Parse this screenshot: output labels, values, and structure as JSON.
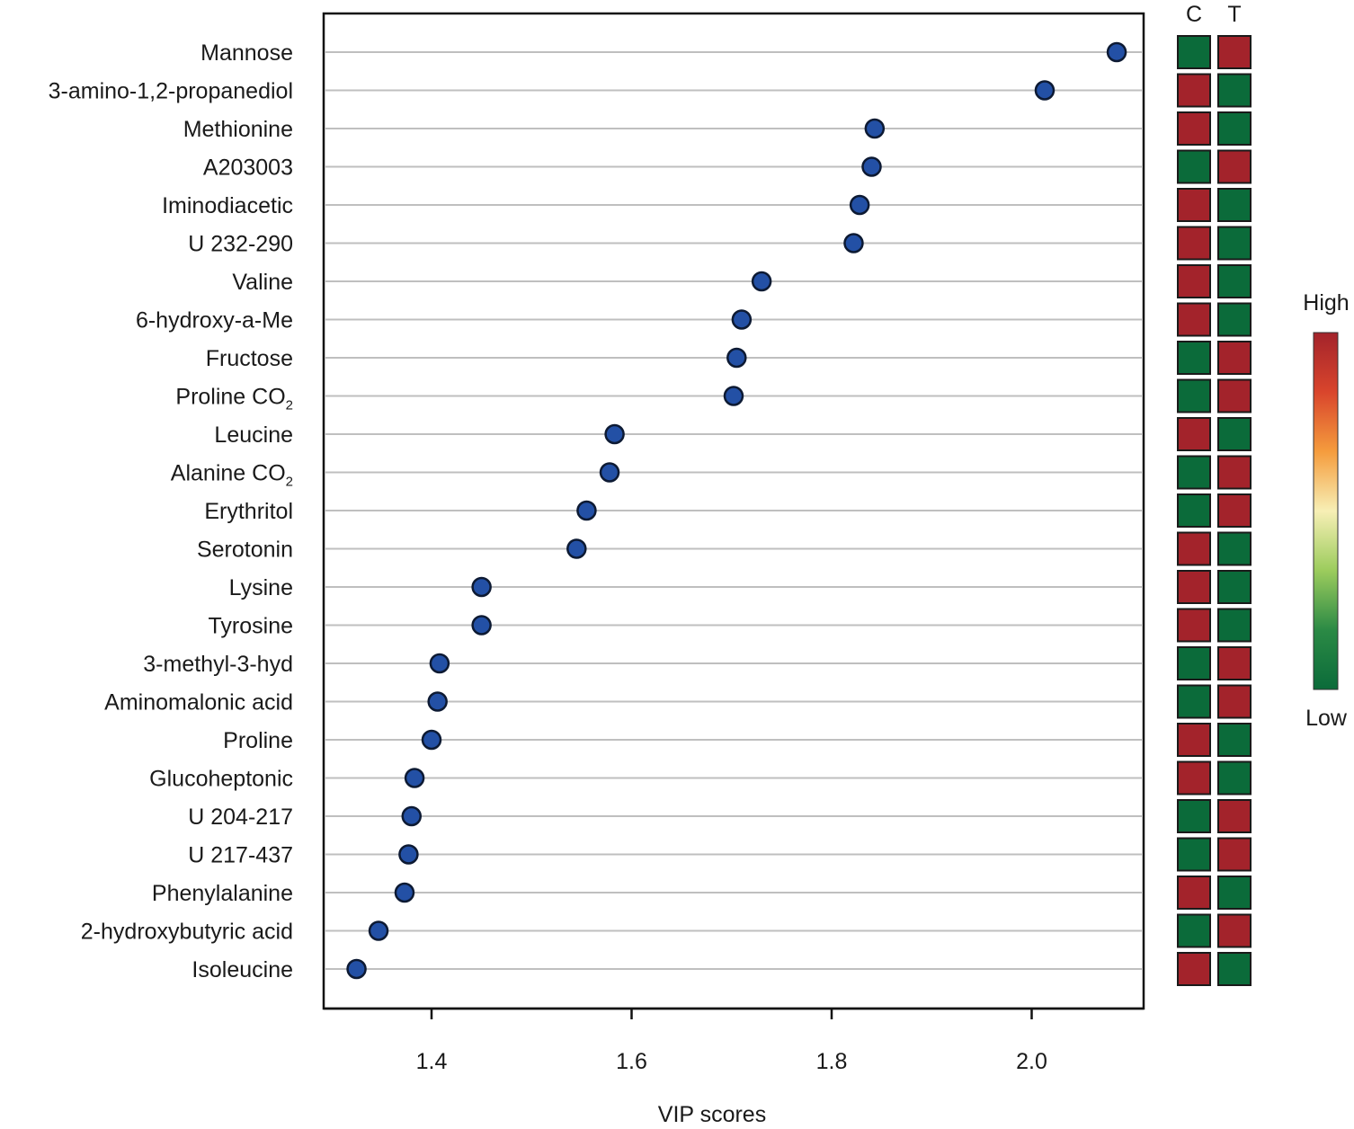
{
  "chart_data": {
    "type": "scatter",
    "xlabel": "VIP scores",
    "xlim": [
      1.265,
      2.095
    ],
    "xticks": [
      "1.4",
      "1.6",
      "1.8",
      "2.0"
    ],
    "grid": "horizontal",
    "points": [
      {
        "metabolite": "Mannose",
        "vip": 2.085,
        "C": "low",
        "T": "high"
      },
      {
        "metabolite": "3-amino-1,2-propanediol",
        "vip": 2.013,
        "C": "high",
        "T": "low"
      },
      {
        "metabolite": "Methionine",
        "vip": 1.843,
        "C": "high",
        "T": "low"
      },
      {
        "metabolite": "A203003",
        "vip": 1.84,
        "C": "low",
        "T": "high"
      },
      {
        "metabolite": "Iminodiacetic",
        "vip": 1.828,
        "C": "high",
        "T": "low"
      },
      {
        "metabolite": "U 232-290",
        "vip": 1.822,
        "C": "high",
        "T": "low"
      },
      {
        "metabolite": "Valine",
        "vip": 1.73,
        "C": "high",
        "T": "low"
      },
      {
        "metabolite": "6-hydroxy-a-Me",
        "vip": 1.71,
        "C": "high",
        "T": "low"
      },
      {
        "metabolite": "Fructose",
        "vip": 1.705,
        "C": "low",
        "T": "high"
      },
      {
        "metabolite": "Proline CO",
        "subscript": "2",
        "vip": 1.702,
        "C": "low",
        "T": "high"
      },
      {
        "metabolite": "Leucine",
        "vip": 1.583,
        "C": "high",
        "T": "low"
      },
      {
        "metabolite": "Alanine CO",
        "subscript": "2",
        "vip": 1.578,
        "C": "low",
        "T": "high"
      },
      {
        "metabolite": "Erythritol",
        "vip": 1.555,
        "C": "low",
        "T": "high"
      },
      {
        "metabolite": "Serotonin",
        "vip": 1.545,
        "C": "high",
        "T": "low"
      },
      {
        "metabolite": "Lysine",
        "vip": 1.45,
        "C": "high",
        "T": "low"
      },
      {
        "metabolite": "Tyrosine",
        "vip": 1.45,
        "C": "high",
        "T": "low"
      },
      {
        "metabolite": "3-methyl-3-hyd",
        "vip": 1.408,
        "C": "low",
        "T": "high"
      },
      {
        "metabolite": "Aminomalonic acid",
        "vip": 1.406,
        "C": "low",
        "T": "high"
      },
      {
        "metabolite": "Proline",
        "vip": 1.4,
        "C": "high",
        "T": "low"
      },
      {
        "metabolite": "Glucoheptonic",
        "vip": 1.383,
        "C": "high",
        "T": "low"
      },
      {
        "metabolite": "U 204-217",
        "vip": 1.38,
        "C": "low",
        "T": "high"
      },
      {
        "metabolite": "U 217-437",
        "vip": 1.377,
        "C": "low",
        "T": "high"
      },
      {
        "metabolite": "Phenylalanine",
        "vip": 1.373,
        "C": "high",
        "T": "low"
      },
      {
        "metabolite": "2-hydroxybutyric acid",
        "vip": 1.347,
        "C": "low",
        "T": "high"
      },
      {
        "metabolite": "Isoleucine",
        "vip": 1.325,
        "C": "high",
        "T": "low"
      }
    ],
    "heatmap_columns": [
      "C",
      "T"
    ],
    "colorbar": {
      "high_label": "High",
      "low_label": "Low"
    },
    "colors": {
      "marker_fill": "#2350a5",
      "marker_stroke": "#0d1a33",
      "gridline": "#bfbfbf",
      "high": "#a3232b",
      "low": "#0b6b3a",
      "gradient": [
        "#a3232b",
        "#d9452c",
        "#f59c3d",
        "#f7efb5",
        "#9ccc5d",
        "#2b8a45",
        "#0b6b3a"
      ]
    }
  }
}
